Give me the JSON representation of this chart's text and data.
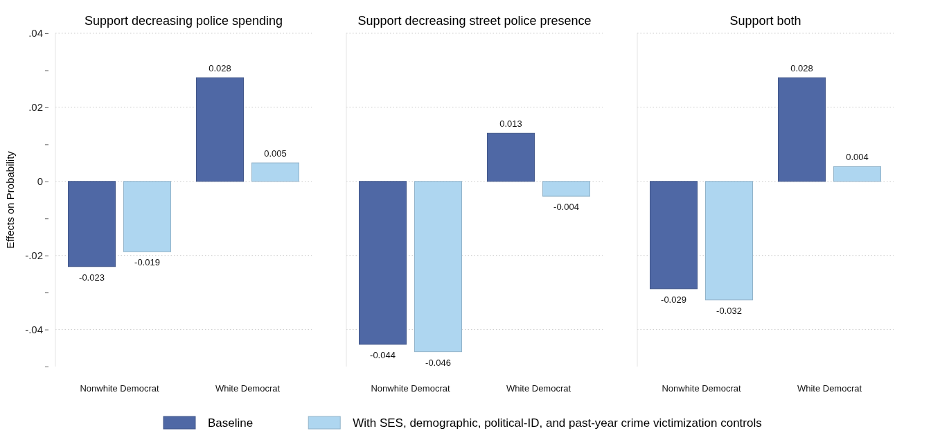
{
  "chart_data": [
    {
      "type": "bar",
      "title": "Support decreasing police spending",
      "ylabel": "Effects on Probability",
      "categories": [
        "Nonwhite Democrat",
        "White Democrat"
      ],
      "series": [
        {
          "name": "Baseline",
          "color": "#4f68a5",
          "values": [
            -0.023,
            0.028
          ]
        },
        {
          "name": "With SES, demographic, political-ID, and past-year crime victimization controls",
          "color": "#aed6f0",
          "values": [
            -0.019,
            0.005
          ]
        }
      ],
      "ylim": [
        -0.05,
        0.04
      ],
      "yticks": [
        {
          "value": -0.05,
          "label": null
        },
        {
          "value": -0.04,
          "label": "-.04"
        },
        {
          "value": -0.03,
          "label": null
        },
        {
          "value": -0.02,
          "label": "-.02"
        },
        {
          "value": -0.01,
          "label": null
        },
        0,
        {
          "value": 0.01,
          "label": null
        },
        {
          "value": 0.02,
          "label": ".02"
        },
        {
          "value": 0.03,
          "label": null
        },
        {
          "value": 0.04,
          "label": ".04"
        }
      ],
      "grid": "y",
      "data_labels": true,
      "legend": "bottom"
    },
    {
      "type": "bar",
      "title": "Support decreasing street police presence",
      "categories": [
        "Nonwhite Democrat",
        "White Democrat"
      ],
      "series": [
        {
          "color": "#4f68a5",
          "values": [
            -0.044,
            0.013
          ]
        },
        {
          "color": "#aed6f0",
          "values": [
            -0.046,
            -0.004
          ]
        }
      ],
      "ylim": [
        -0.05,
        0.04
      ],
      "yticks": [
        {
          "value": -0.04,
          "label": null
        },
        {
          "value": -0.02,
          "label": null
        },
        {
          "value": 0,
          "label": null
        },
        {
          "value": 0.02,
          "label": null
        },
        {
          "value": 0.04,
          "label": null
        }
      ],
      "grid": "y",
      "data_labels": true,
      "tick_labels": "x"
    },
    {
      "type": "bar",
      "title": "Support both",
      "categories": [
        "Nonwhite Democrat",
        "White Democrat"
      ],
      "series": [
        {
          "color": "#4f68a5",
          "values": [
            -0.029,
            0.028
          ]
        },
        {
          "color": "#aed6f0",
          "values": [
            -0.032,
            0.004
          ]
        }
      ],
      "ylim": [
        -0.05,
        0.04
      ],
      "yticks": [
        {
          "value": -0.04,
          "label": null
        },
        {
          "value": -0.02,
          "label": null
        },
        {
          "value": 0,
          "label": null
        },
        {
          "value": 0.02,
          "label": null
        },
        {
          "value": 0.04,
          "label": null
        }
      ],
      "grid": "y",
      "data_labels": true,
      "tick_labels": "x"
    }
  ]
}
